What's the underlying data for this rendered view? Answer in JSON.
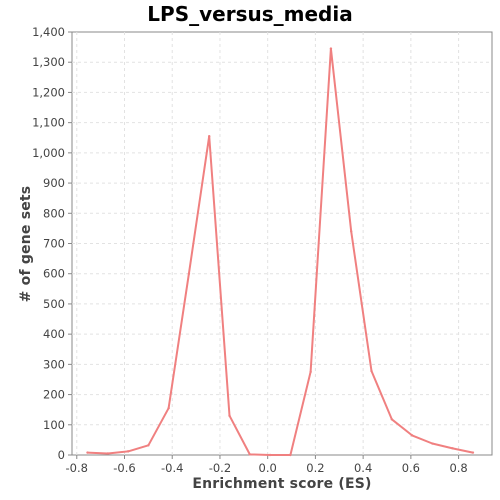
{
  "chart_data": {
    "type": "line",
    "title": "LPS_versus_media",
    "xlabel": "Enrichment score (ES)",
    "ylabel": "# of gene sets",
    "xlim": [
      -0.82,
      0.94
    ],
    "ylim": [
      0,
      1400
    ],
    "x_ticks": [
      -0.8,
      -0.6,
      -0.4,
      -0.2,
      0.0,
      0.2,
      0.4,
      0.6,
      0.8
    ],
    "x_tick_labels": [
      "-0.8",
      "-0.6",
      "-0.4",
      "-0.2",
      "0.0",
      "0.2",
      "0.4",
      "0.6",
      "0.8"
    ],
    "y_ticks": [
      0,
      100,
      200,
      300,
      400,
      500,
      600,
      700,
      800,
      900,
      1000,
      1100,
      1200,
      1300,
      1400
    ],
    "y_tick_labels": [
      "0",
      "100",
      "200",
      "300",
      "400",
      "500",
      "600",
      "700",
      "800",
      "900",
      "1,000",
      "1,100",
      "1,200",
      "1,300",
      "1,400"
    ],
    "grid": true,
    "series": [
      {
        "color": "#f08080",
        "x": [
          -0.755,
          -0.67,
          -0.585,
          -0.5,
          -0.415,
          -0.33,
          -0.245,
          -0.16,
          -0.075,
          0.01,
          0.095,
          0.18,
          0.265,
          0.35,
          0.435,
          0.52,
          0.605,
          0.69,
          0.775,
          0.86
        ],
        "y": [
          8,
          5,
          12,
          32,
          155,
          600,
          1055,
          130,
          2,
          0,
          0,
          275,
          1345,
          740,
          278,
          118,
          65,
          38,
          22,
          8
        ]
      }
    ]
  }
}
